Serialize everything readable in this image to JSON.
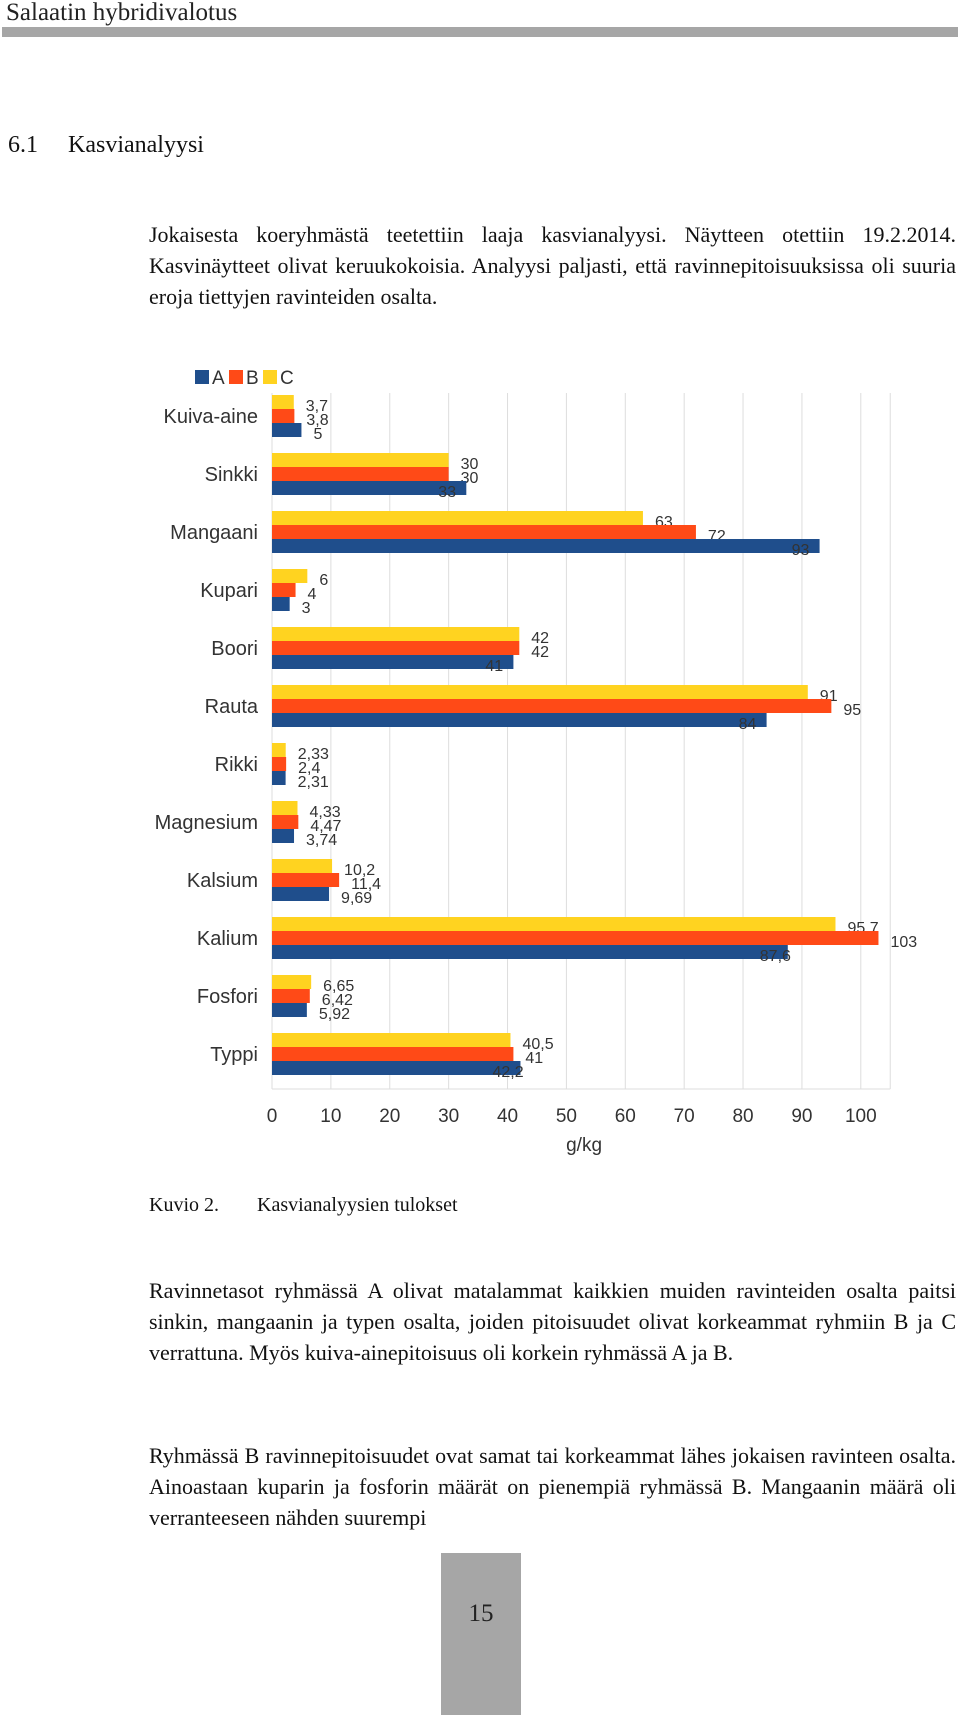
{
  "header": {
    "title": "Salaatin hybridivalotus"
  },
  "section": {
    "number": "6.1",
    "title": "Kasvianalyysi"
  },
  "paragraphs": {
    "intro": "Jokaisesta koeryhmästä teetettiin laaja kasvianalyysi. Näytteen otettiin 19.2.2014. Kasvinäytteet olivat keruukokoisia. Analyysi paljasti, että ravinnepitoisuuksissa oli suuria eroja tiettyjen ravinteiden osalta.",
    "groupA": "Ravinnetasot ryhmässä A olivat matalammat kaikkien muiden ravinteiden osalta paitsi sinkin, mangaanin ja typen osalta, joiden pitoisuudet olivat korkeammat ryhmiin B ja C verrattuna. Myös kuiva-ainepitoisuus oli korkein ryhmässä A ja B.",
    "groupB": "Ryhmässä B ravinnepitoisuudet ovat samat tai korkeammat lähes jokaisen ravinteen osalta. Ainoastaan kuparin ja fosforin määrät on pienempiä ryhmässä B. Mangaanin määrä oli verranteeseen nähden suurempi"
  },
  "caption": {
    "label": "Kuvio 2.",
    "text": "Kasvianalyysien tulokset"
  },
  "page_number": "15",
  "chart_data": {
    "type": "bar",
    "orientation": "horizontal",
    "categories": [
      "Kuiva-aine",
      "Sinkki",
      "Mangaani",
      "Kupari",
      "Boori",
      "Rauta",
      "Rikki",
      "Magnesium",
      "Kalsium",
      "Kalium",
      "Fosfori",
      "Typpi"
    ],
    "series": [
      {
        "name": "A",
        "color": "#1f4e8c",
        "values": [
          5,
          33,
          93,
          3,
          41,
          84,
          2.31,
          3.74,
          9.69,
          87.6,
          5.92,
          42.2
        ],
        "labels": [
          "5",
          "33",
          "93",
          "3",
          "41",
          "84",
          "2,31",
          "3,74",
          "9,69",
          "87,6",
          "5,92",
          "42,2"
        ]
      },
      {
        "name": "B",
        "color": "#ff4a17",
        "values": [
          3.8,
          30,
          72,
          4,
          42,
          95,
          2.4,
          4.47,
          11.4,
          103,
          6.42,
          41
        ],
        "labels": [
          "3,8",
          "30",
          "72",
          "4",
          "42",
          "95",
          "2,4",
          "4,47",
          "11,4",
          "103",
          "6,42",
          "41"
        ]
      },
      {
        "name": "C",
        "color": "#ffd320",
        "values": [
          3.7,
          30,
          63,
          6,
          42,
          91,
          2.33,
          4.33,
          10.2,
          95.7,
          6.65,
          40.5
        ],
        "labels": [
          "3,7",
          "30",
          "63",
          "6",
          "42",
          "91",
          "2,33",
          "4,33",
          "10,2",
          "95,7",
          "6,65",
          "40,5"
        ]
      }
    ],
    "xlabel": "g/kg",
    "xlim": [
      0,
      105
    ],
    "xticks": [
      0,
      10,
      20,
      30,
      40,
      50,
      60,
      70,
      80,
      90,
      100
    ],
    "grid": true,
    "legend": "top-left"
  }
}
